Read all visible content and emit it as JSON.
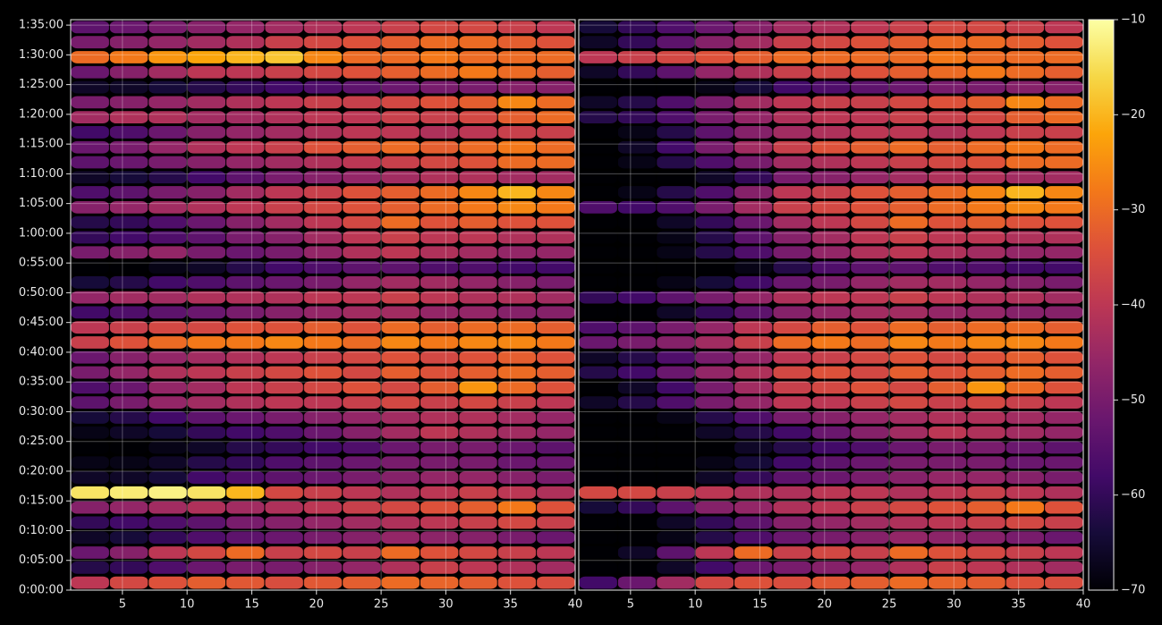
{
  "chart_data": [
    {
      "type": "heatmap",
      "colormap": "inferno",
      "grid": true,
      "xlim": [
        1,
        40
      ],
      "xticks": [
        5,
        10,
        15,
        20,
        25,
        30,
        35,
        40
      ],
      "ylim": [
        0,
        5755
      ],
      "yticks": [
        {
          "value": 0,
          "label": "0:00:00"
        },
        {
          "value": 300,
          "label": "0:05:00"
        },
        {
          "value": 600,
          "label": "0:10:00"
        },
        {
          "value": 900,
          "label": "0:15:00"
        },
        {
          "value": 1200,
          "label": "0:20:00"
        },
        {
          "value": 1500,
          "label": "0:25:00"
        },
        {
          "value": 1800,
          "label": "0:30:00"
        },
        {
          "value": 2100,
          "label": "0:35:00"
        },
        {
          "value": 2400,
          "label": "0:40:00"
        },
        {
          "value": 2700,
          "label": "0:45:00"
        },
        {
          "value": 3000,
          "label": "0:50:00"
        },
        {
          "value": 3300,
          "label": "0:55:00"
        },
        {
          "value": 3600,
          "label": "1:00:00"
        },
        {
          "value": 3900,
          "label": "1:05:00"
        },
        {
          "value": 4200,
          "label": "1:10:00"
        },
        {
          "value": 4500,
          "label": "1:15:00"
        },
        {
          "value": 4800,
          "label": "1:20:00"
        },
        {
          "value": 5100,
          "label": "1:25:00"
        },
        {
          "value": 5400,
          "label": "1:30:00"
        },
        {
          "value": 5700,
          "label": "1:35:00"
        }
      ],
      "z": [
        [
          -40,
          -36,
          -34,
          -32,
          -33,
          -35,
          -33,
          -32,
          -30,
          -31,
          -32,
          -34,
          -35
        ],
        [
          -62,
          -60,
          -56,
          -52,
          -50,
          -50,
          -48,
          -46,
          -42,
          -38,
          -40,
          -42,
          -44
        ],
        [
          -52,
          -48,
          -40,
          -36,
          -30,
          -38,
          -36,
          -38,
          -30,
          -34,
          -36,
          -38,
          -40
        ],
        [
          -66,
          -64,
          -60,
          -56,
          -54,
          -52,
          -50,
          -48,
          -46,
          -47,
          -48,
          -50,
          -52
        ],
        [
          -60,
          -58,
          -56,
          -54,
          -50,
          -48,
          -46,
          -44,
          -42,
          -40,
          -38,
          -36,
          -38
        ],
        [
          -48,
          -46,
          -44,
          -42,
          -44,
          -42,
          -40,
          -38,
          -36,
          -34,
          -32,
          -28,
          -34
        ],
        [
          -14,
          -13,
          -12,
          -14,
          -20,
          -36,
          -38,
          -40,
          -42,
          -40,
          -38,
          -40,
          -42
        ],
        [
          -66,
          -66,
          -64,
          -58,
          -56,
          -54,
          -52,
          -50,
          -48,
          -46,
          -46,
          -48,
          -50
        ],
        [
          -68,
          -68,
          -66,
          -62,
          -60,
          -56,
          -54,
          -52,
          -50,
          -50,
          -50,
          -52,
          -52
        ],
        [
          -70,
          -70,
          -68,
          -66,
          -62,
          -60,
          -58,
          -56,
          -52,
          -50,
          -50,
          -52,
          -54
        ],
        [
          -68,
          -66,
          -64,
          -60,
          -58,
          -56,
          -52,
          -48,
          -44,
          -40,
          -42,
          -44,
          -46
        ],
        [
          -64,
          -62,
          -58,
          -54,
          -52,
          -50,
          -48,
          -46,
          -44,
          -42,
          -42,
          -44,
          -46
        ],
        [
          -54,
          -50,
          -46,
          -44,
          -42,
          -40,
          -40,
          -38,
          -36,
          -38,
          -36,
          -38,
          -40
        ],
        [
          -56,
          -52,
          -46,
          -44,
          -40,
          -38,
          -36,
          -34,
          -36,
          -32,
          -24,
          -30,
          -34
        ],
        [
          -50,
          -46,
          -42,
          -40,
          -38,
          -36,
          -34,
          -36,
          -32,
          -34,
          -32,
          -30,
          -32
        ],
        [
          -52,
          -48,
          -46,
          -44,
          -42,
          -40,
          -38,
          -36,
          -34,
          -36,
          -34,
          -32,
          -34
        ],
        [
          -38,
          -34,
          -30,
          -28,
          -28,
          -26,
          -28,
          -30,
          -26,
          -28,
          -26,
          -26,
          -28
        ],
        [
          -40,
          -38,
          -36,
          -36,
          -34,
          -34,
          -32,
          -34,
          -30,
          -32,
          -30,
          -30,
          -32
        ],
        [
          -58,
          -56,
          -54,
          -52,
          -50,
          -48,
          -46,
          -44,
          -44,
          -46,
          -46,
          -48,
          -48
        ],
        [
          -46,
          -44,
          -44,
          -42,
          -42,
          -42,
          -40,
          -40,
          -38,
          -40,
          -42,
          -42,
          -44
        ],
        [
          -64,
          -62,
          -58,
          -56,
          -54,
          -52,
          -50,
          -46,
          -44,
          -44,
          -46,
          -48,
          -50
        ],
        [
          -70,
          -70,
          -68,
          -66,
          -62,
          -58,
          -56,
          -54,
          -54,
          -56,
          -56,
          -58,
          -58
        ],
        [
          -50,
          -48,
          -46,
          -50,
          -52,
          -50,
          -46,
          -42,
          -40,
          -42,
          -44,
          -46,
          -46
        ],
        [
          -60,
          -58,
          -56,
          -54,
          -50,
          -48,
          -44,
          -40,
          -38,
          -40,
          -40,
          -42,
          -42
        ],
        [
          -62,
          -60,
          -56,
          -52,
          -48,
          -44,
          -40,
          -36,
          -30,
          -34,
          -32,
          -34,
          -34
        ],
        [
          -48,
          -46,
          -44,
          -42,
          -40,
          -38,
          -36,
          -34,
          -32,
          -30,
          -28,
          -26,
          -28
        ],
        [
          -56,
          -54,
          -50,
          -48,
          -44,
          -40,
          -38,
          -34,
          -32,
          -30,
          -26,
          -20,
          -26
        ],
        [
          -66,
          -64,
          -62,
          -58,
          -54,
          -50,
          -48,
          -46,
          -44,
          -42,
          -42,
          -44,
          -44
        ],
        [
          -54,
          -52,
          -50,
          -48,
          -46,
          -44,
          -42,
          -40,
          -38,
          -36,
          -34,
          -30,
          -30
        ],
        [
          -52,
          -50,
          -46,
          -42,
          -40,
          -38,
          -34,
          -32,
          -30,
          -32,
          -30,
          -28,
          -30
        ],
        [
          -58,
          -56,
          -52,
          -48,
          -46,
          -44,
          -42,
          -40,
          -40,
          -42,
          -40,
          -38,
          -38
        ],
        [
          -44,
          -42,
          -42,
          -44,
          -44,
          -42,
          -40,
          -40,
          -38,
          -38,
          -36,
          -32,
          -30
        ],
        [
          -50,
          -48,
          -46,
          -44,
          -42,
          -40,
          -38,
          -38,
          -36,
          -34,
          -32,
          -26,
          -30
        ],
        [
          -66,
          -66,
          -64,
          -62,
          -60,
          -58,
          -56,
          -54,
          -52,
          -50,
          -50,
          -48,
          -48
        ],
        [
          -52,
          -48,
          -44,
          -40,
          -40,
          -38,
          -36,
          -34,
          -32,
          -30,
          -28,
          -30,
          -32
        ],
        [
          -30,
          -28,
          -24,
          -22,
          -20,
          -18,
          -26,
          -30,
          -30,
          -28,
          -30,
          -30,
          -30
        ],
        [
          -50,
          -48,
          -46,
          -44,
          -42,
          -38,
          -36,
          -34,
          -32,
          -30,
          -30,
          -32,
          -34
        ],
        [
          -54,
          -52,
          -50,
          -48,
          -46,
          -44,
          -42,
          -40,
          -38,
          -36,
          -36,
          -38,
          -40
        ]
      ]
    },
    {
      "type": "heatmap",
      "colormap": "inferno",
      "grid": true,
      "xlim": [
        1,
        40
      ],
      "xticks": [
        5,
        10,
        15,
        20,
        25,
        30,
        35,
        40
      ],
      "ylim": [
        0,
        5755
      ],
      "yticks": [
        0,
        300,
        600,
        900,
        1200,
        1500,
        1800,
        2100,
        2400,
        2700,
        3000,
        3300,
        3600,
        3900,
        4200,
        4500,
        4800,
        5100,
        5400,
        5700
      ],
      "z": [
        [
          -58,
          -52,
          -44,
          -36,
          -34,
          -35,
          -33,
          -32,
          -30,
          -31,
          -32,
          -34,
          -35
        ],
        [
          -70,
          -70,
          -66,
          -58,
          -52,
          -50,
          -48,
          -46,
          -42,
          -38,
          -40,
          -42,
          -44
        ],
        [
          -70,
          -66,
          -54,
          -40,
          -30,
          -38,
          -36,
          -38,
          -30,
          -34,
          -36,
          -38,
          -40
        ],
        [
          -70,
          -70,
          -68,
          -62,
          -56,
          -52,
          -50,
          -48,
          -46,
          -47,
          -48,
          -50,
          -52
        ],
        [
          -70,
          -70,
          -66,
          -60,
          -54,
          -48,
          -46,
          -44,
          -42,
          -40,
          -38,
          -36,
          -38
        ],
        [
          -64,
          -60,
          -54,
          -48,
          -46,
          -42,
          -40,
          -38,
          -36,
          -34,
          -32,
          -28,
          -34
        ],
        [
          -36,
          -36,
          -38,
          -40,
          -42,
          -42,
          -40,
          -40,
          -42,
          -40,
          -38,
          -40,
          -42
        ],
        [
          -70,
          -70,
          -70,
          -66,
          -60,
          -54,
          -52,
          -50,
          -48,
          -46,
          -46,
          -48,
          -50
        ],
        [
          -70,
          -70,
          -70,
          -68,
          -64,
          -58,
          -54,
          -52,
          -50,
          -50,
          -50,
          -52,
          -52
        ],
        [
          -70,
          -70,
          -70,
          -70,
          -66,
          -62,
          -58,
          -56,
          -52,
          -50,
          -50,
          -52,
          -54
        ],
        [
          -70,
          -70,
          -70,
          -66,
          -62,
          -58,
          -52,
          -48,
          -44,
          -40,
          -42,
          -44,
          -46
        ],
        [
          -70,
          -70,
          -68,
          -62,
          -56,
          -50,
          -48,
          -46,
          -44,
          -42,
          -42,
          -44,
          -46
        ],
        [
          -66,
          -62,
          -56,
          -50,
          -46,
          -40,
          -40,
          -38,
          -36,
          -38,
          -36,
          -38,
          -40
        ],
        [
          -70,
          -66,
          -58,
          -50,
          -44,
          -38,
          -36,
          -34,
          -36,
          -32,
          -24,
          -30,
          -34
        ],
        [
          -62,
          -58,
          -52,
          -46,
          -42,
          -36,
          -34,
          -36,
          -32,
          -34,
          -32,
          -30,
          -32
        ],
        [
          -66,
          -62,
          -56,
          -50,
          -46,
          -40,
          -38,
          -36,
          -34,
          -36,
          -34,
          -32,
          -34
        ],
        [
          -52,
          -50,
          -48,
          -44,
          -38,
          -30,
          -28,
          -30,
          -26,
          -28,
          -26,
          -26,
          -28
        ],
        [
          -56,
          -54,
          -50,
          -46,
          -40,
          -36,
          -32,
          -34,
          -30,
          -32,
          -30,
          -30,
          -32
        ],
        [
          -70,
          -70,
          -66,
          -60,
          -54,
          -48,
          -46,
          -44,
          -44,
          -46,
          -46,
          -48,
          -48
        ],
        [
          -60,
          -58,
          -54,
          -50,
          -46,
          -42,
          -40,
          -40,
          -38,
          -40,
          -42,
          -42,
          -44
        ],
        [
          -70,
          -70,
          -68,
          -64,
          -58,
          -52,
          -50,
          -46,
          -44,
          -44,
          -46,
          -48,
          -50
        ],
        [
          -70,
          -70,
          -70,
          -70,
          -68,
          -62,
          -56,
          -54,
          -54,
          -56,
          -56,
          -58,
          -58
        ],
        [
          -70,
          -70,
          -68,
          -62,
          -56,
          -50,
          -46,
          -42,
          -40,
          -42,
          -44,
          -46,
          -46
        ],
        [
          -70,
          -70,
          -68,
          -62,
          -54,
          -48,
          -44,
          -40,
          -38,
          -40,
          -40,
          -42,
          -42
        ],
        [
          -70,
          -70,
          -66,
          -60,
          -52,
          -44,
          -40,
          -36,
          -30,
          -34,
          -32,
          -34,
          -34
        ],
        [
          -56,
          -58,
          -56,
          -50,
          -44,
          -38,
          -36,
          -34,
          -32,
          -30,
          -28,
          -26,
          -28
        ],
        [
          -70,
          -68,
          -62,
          -56,
          -48,
          -40,
          -38,
          -34,
          -32,
          -30,
          -26,
          -20,
          -26
        ],
        [
          -70,
          -70,
          -70,
          -66,
          -60,
          -50,
          -48,
          -46,
          -44,
          -42,
          -42,
          -44,
          -44
        ],
        [
          -70,
          -68,
          -62,
          -56,
          -50,
          -44,
          -42,
          -40,
          -38,
          -36,
          -34,
          -30,
          -30
        ],
        [
          -70,
          -66,
          -58,
          -50,
          -44,
          -38,
          -34,
          -32,
          -30,
          -32,
          -30,
          -28,
          -30
        ],
        [
          -70,
          -68,
          -62,
          -54,
          -48,
          -44,
          -42,
          -40,
          -40,
          -42,
          -40,
          -38,
          -38
        ],
        [
          -62,
          -60,
          -56,
          -50,
          -46,
          -42,
          -40,
          -40,
          -38,
          -38,
          -36,
          -32,
          -30
        ],
        [
          -66,
          -62,
          -56,
          -50,
          -44,
          -40,
          -38,
          -38,
          -36,
          -34,
          -32,
          -26,
          -30
        ],
        [
          -70,
          -70,
          -70,
          -68,
          -64,
          -58,
          -56,
          -54,
          -52,
          -50,
          -50,
          -48,
          -48
        ],
        [
          -66,
          -60,
          -54,
          -46,
          -42,
          -38,
          -36,
          -34,
          -32,
          -30,
          -28,
          -30,
          -32
        ],
        [
          -40,
          -38,
          -36,
          -34,
          -32,
          -30,
          -30,
          -30,
          -30,
          -28,
          -30,
          -30,
          -30
        ],
        [
          -66,
          -60,
          -54,
          -48,
          -44,
          -38,
          -36,
          -34,
          -32,
          -30,
          -30,
          -32,
          -34
        ],
        [
          -64,
          -60,
          -56,
          -52,
          -48,
          -44,
          -42,
          -40,
          -38,
          -36,
          -36,
          -38,
          -40
        ]
      ],
      "colorbar": {
        "colormap": "inferno",
        "lim": [
          -70,
          -10
        ],
        "ticks": [
          {
            "value": -70,
            "label": "−70"
          },
          {
            "value": -60,
            "label": "−60"
          },
          {
            "value": -50,
            "label": "−50"
          },
          {
            "value": -40,
            "label": "−40"
          },
          {
            "value": -30,
            "label": "−30"
          },
          {
            "value": -20,
            "label": "−20"
          },
          {
            "value": -10,
            "label": "−10"
          }
        ]
      }
    }
  ]
}
